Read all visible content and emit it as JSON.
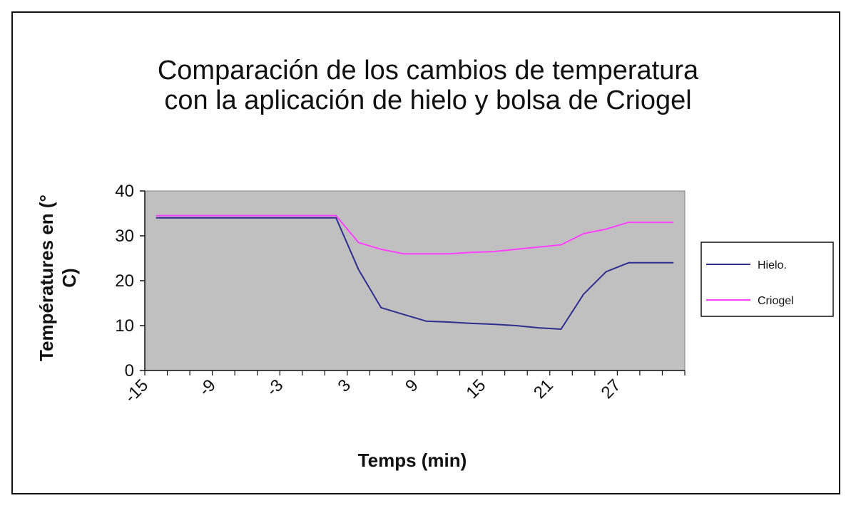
{
  "chart_data": {
    "type": "line",
    "title_lines": [
      "Comparación de los cambios de temperatura",
      "con la aplicación de hielo y bolsa de Criogel"
    ],
    "xlabel": "Temps (min)",
    "ylabel": "Températures en (° C)",
    "ylabel_lines": [
      "Températures en (°",
      "C)"
    ],
    "x_ticks": [
      "-15",
      "-9",
      "-3",
      "3",
      "9",
      "15",
      "21",
      "27"
    ],
    "y_ticks": [
      "0",
      "10",
      "20",
      "30",
      "40"
    ],
    "xlim": [
      -15,
      33
    ],
    "ylim": [
      0,
      40
    ],
    "grid": false,
    "legend_position": "right",
    "plot_background": "#c0c0c0",
    "x": [
      -14,
      -12,
      -10,
      -8,
      -6,
      -4,
      -2,
      0,
      2,
      4,
      6,
      8,
      10,
      12,
      14,
      16,
      18,
      20,
      22,
      24,
      26,
      28,
      30,
      32
    ],
    "series": [
      {
        "name": "Hielo.",
        "color": "#2e2e8f",
        "values": [
          34,
          34,
          34,
          34,
          34,
          34,
          34,
          34,
          34,
          22.5,
          14,
          12.5,
          11,
          10.8,
          10.5,
          10.3,
          10,
          9.5,
          9.2,
          17,
          22,
          24,
          24,
          24
        ]
      },
      {
        "name": "Criogel",
        "color": "#ff40ff",
        "values": [
          34.5,
          34.5,
          34.5,
          34.5,
          34.5,
          34.5,
          34.5,
          34.5,
          34.5,
          28.5,
          27,
          26,
          26,
          26,
          26.3,
          26.5,
          27,
          27.5,
          28,
          30.5,
          31.5,
          33,
          33,
          33
        ]
      }
    ]
  }
}
